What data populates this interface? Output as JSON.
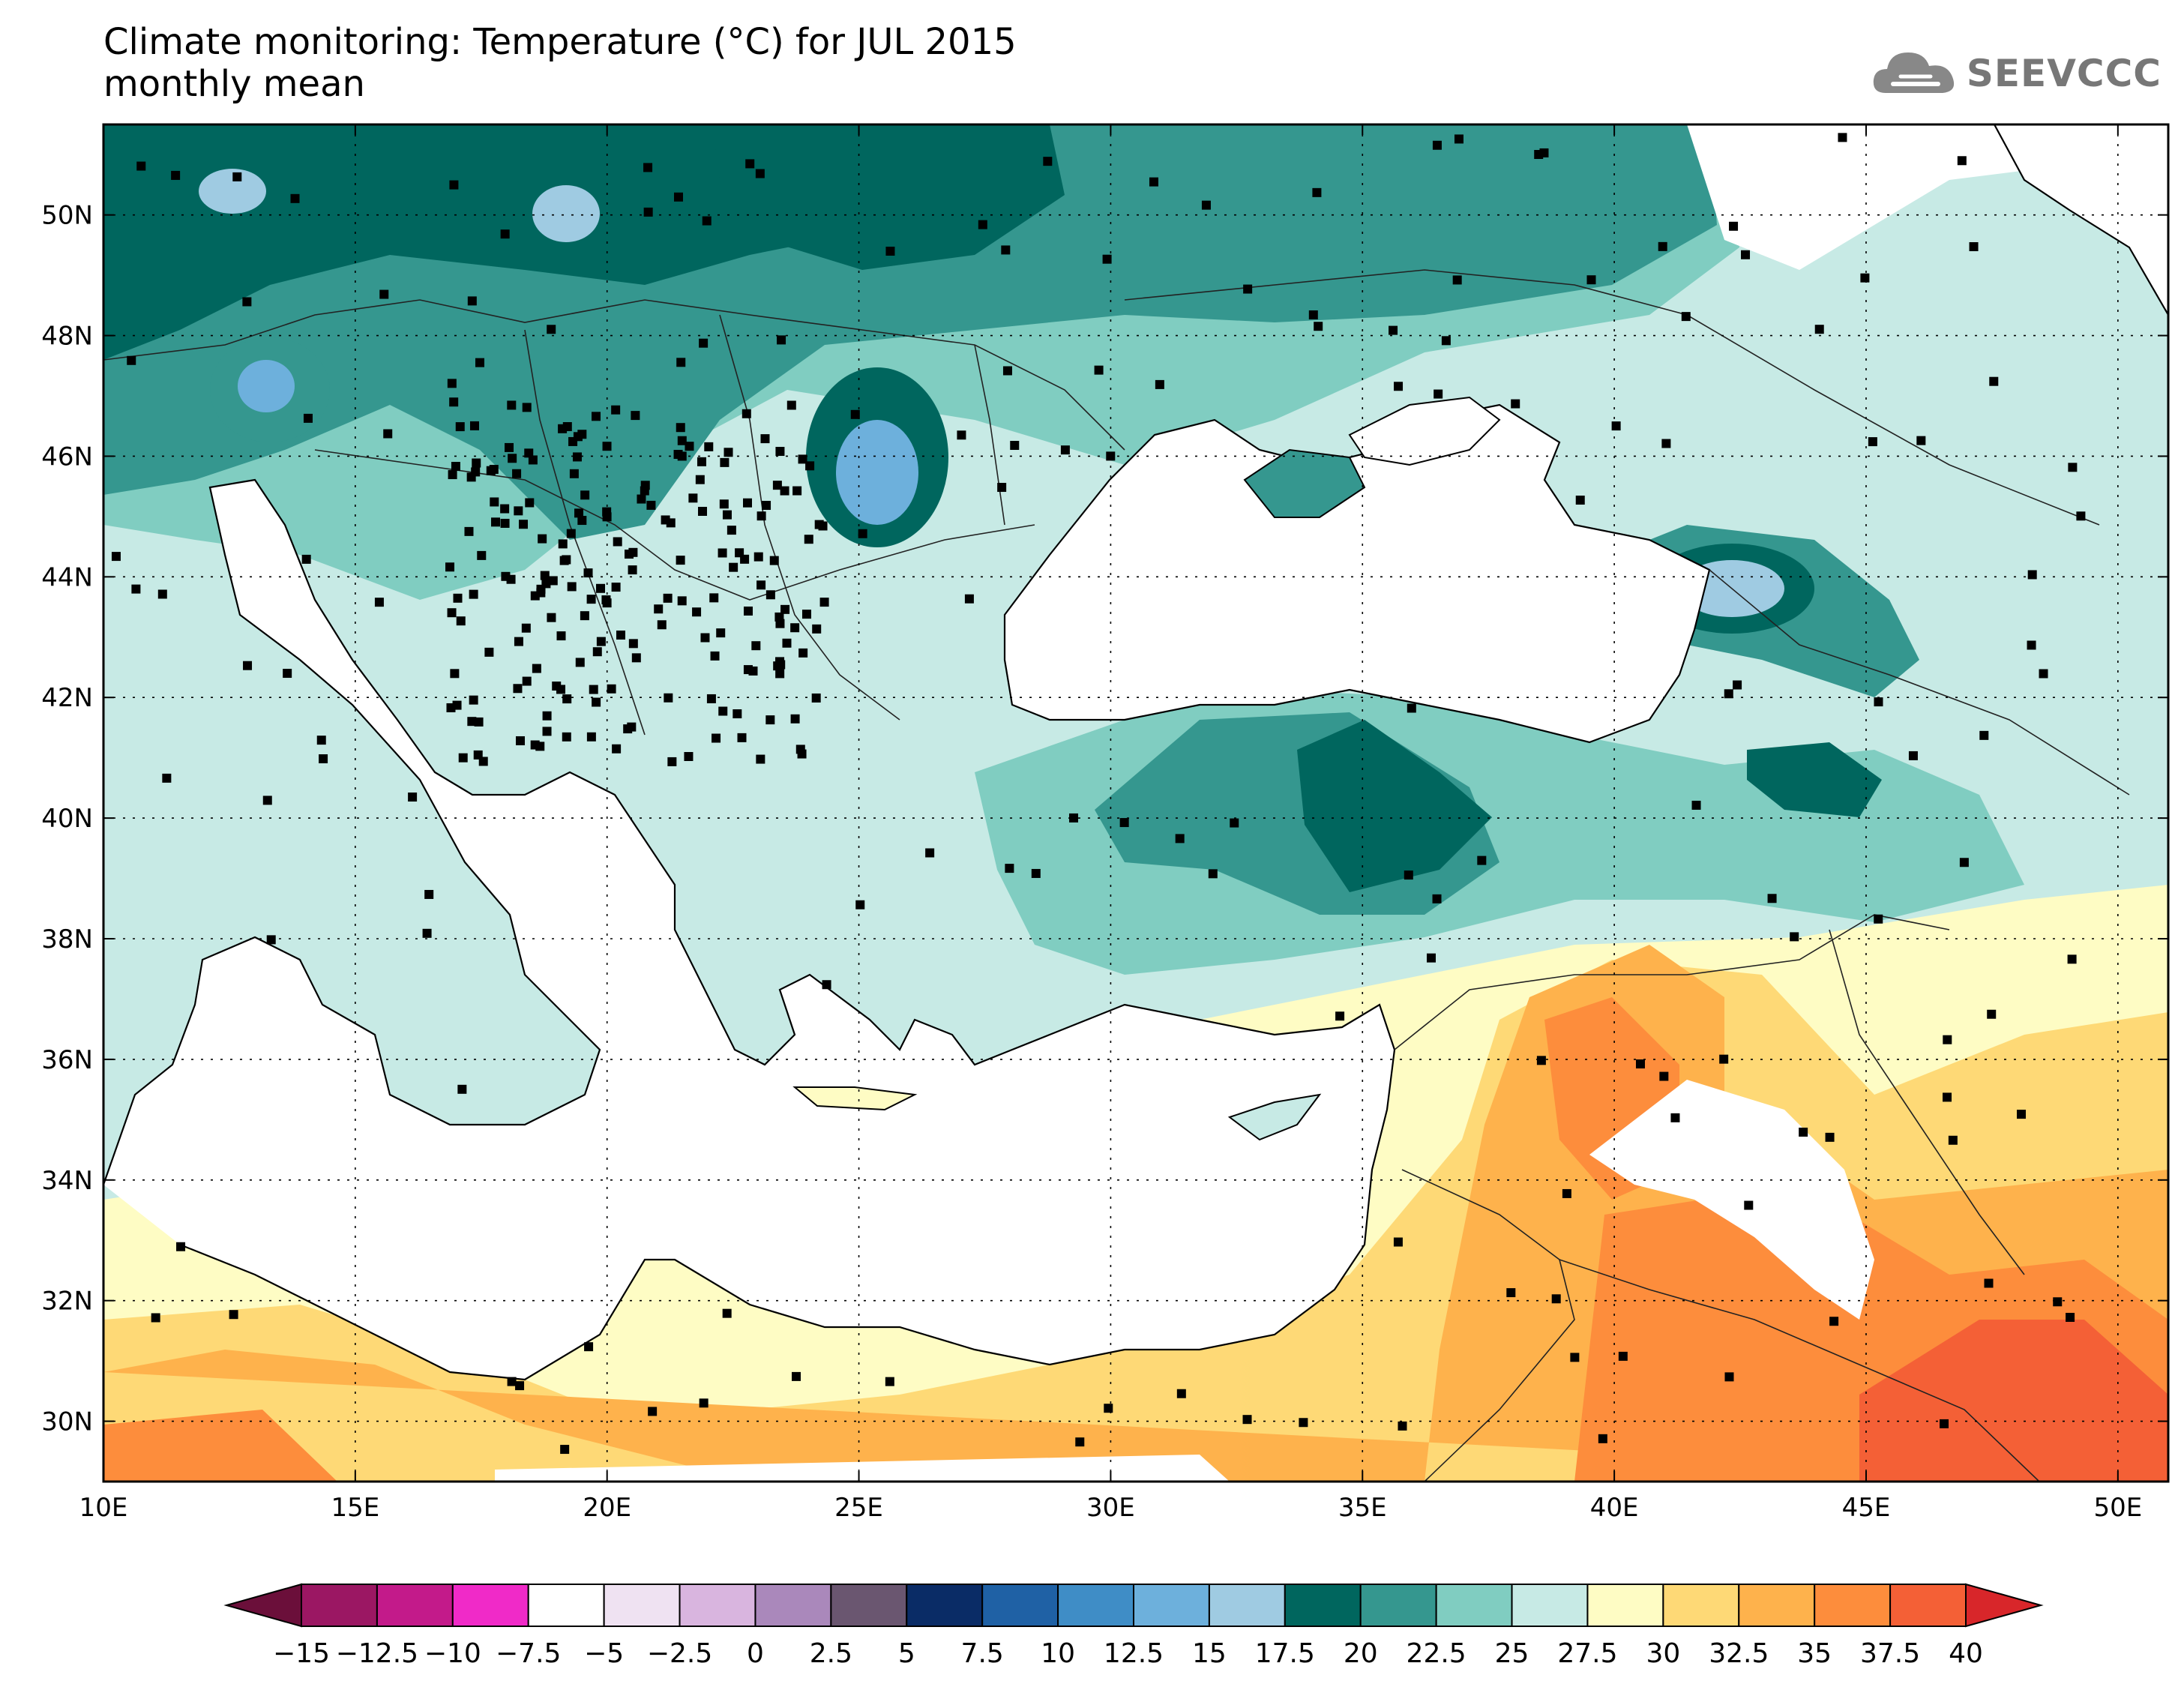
{
  "title": {
    "line1": "Climate monitoring: Temperature (°C) for JUL 2015",
    "line2": "monthly mean"
  },
  "logo": {
    "text": "SEEVCCC",
    "icon": "cloud-icon"
  },
  "map": {
    "lon_range": [
      10,
      51
    ],
    "lat_range": [
      29,
      51.5
    ],
    "lon_ticks": [
      {
        "value": 10,
        "label": "10E"
      },
      {
        "value": 15,
        "label": "15E"
      },
      {
        "value": 20,
        "label": "20E"
      },
      {
        "value": 25,
        "label": "25E"
      },
      {
        "value": 30,
        "label": "30E"
      },
      {
        "value": 35,
        "label": "35E"
      },
      {
        "value": 40,
        "label": "40E"
      },
      {
        "value": 45,
        "label": "45E"
      },
      {
        "value": 50,
        "label": "50E"
      }
    ],
    "lat_ticks": [
      {
        "value": 30,
        "label": "30N"
      },
      {
        "value": 32,
        "label": "32N"
      },
      {
        "value": 34,
        "label": "34N"
      },
      {
        "value": 36,
        "label": "36N"
      },
      {
        "value": 38,
        "label": "38N"
      },
      {
        "value": 40,
        "label": "40N"
      },
      {
        "value": 42,
        "label": "42N"
      },
      {
        "value": 44,
        "label": "44N"
      },
      {
        "value": 46,
        "label": "46N"
      },
      {
        "value": 48,
        "label": "48N"
      },
      {
        "value": 50,
        "label": "50N"
      }
    ],
    "gridlines": "dotted"
  },
  "colorbar": {
    "labels": [
      "-15",
      "-12.5",
      "-10",
      "-7.5",
      "-5",
      "-2.5",
      "0",
      "2.5",
      "5",
      "7.5",
      "10",
      "12.5",
      "15",
      "17.5",
      "20",
      "22.5",
      "25",
      "27.5",
      "30",
      "32.5",
      "35",
      "37.5",
      "40"
    ],
    "left_arrow_color": "#6b0f3a",
    "right_arrow_color": "#d8262a",
    "colors": [
      "#9b1763",
      "#c31a8a",
      "#f02ac8",
      "#ffffff",
      "#efe2f2",
      "#d9b5df",
      "#aa88bb",
      "#6a5670",
      "#0a2c66",
      "#1f61a5",
      "#3f8dc6",
      "#6db0dc",
      "#9fcbe2",
      "#00665e",
      "#35978f",
      "#80cdc1",
      "#c7eae5",
      "#fefcc4",
      "#fed976",
      "#feb24c",
      "#fd8d3c",
      "#f46036"
    ]
  }
}
